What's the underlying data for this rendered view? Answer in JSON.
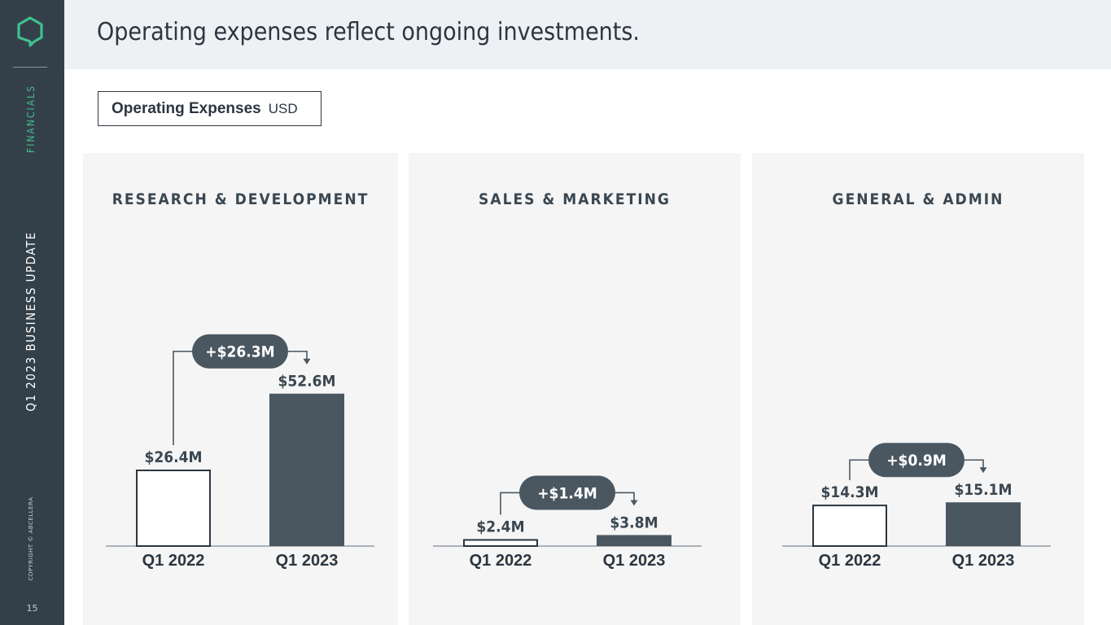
{
  "sidebar": {
    "section": "FINANCIALS",
    "deck": "Q1 2023 BUSINESS UPDATE",
    "copyright": "COPYRIGHT © ABCELLERA",
    "page_number": "15"
  },
  "header": {
    "title": "Operating expenses reflect ongoing investments."
  },
  "tag": {
    "label": "Operating Expenses",
    "unit": "USD"
  },
  "colors": {
    "sidebar": "#344049",
    "accent": "#3fbf90",
    "bar_dark": "#4a5761",
    "bar_outline": "#2b3640",
    "pill": "#4a5761",
    "panel": "#f5f5f5"
  },
  "chart_data": [
    {
      "type": "bar",
      "title": "RESEARCH & DEVELOPMENT",
      "categories": [
        "Q1 2022",
        "Q1 2023"
      ],
      "values": [
        26.4,
        52.6
      ],
      "value_labels": [
        "$26.4M",
        "$52.6M"
      ],
      "change_label": "+$26.3M",
      "ylim": [
        0,
        60
      ]
    },
    {
      "type": "bar",
      "title": "SALES & MARKETING",
      "categories": [
        "Q1 2022",
        "Q1 2023"
      ],
      "values": [
        2.4,
        3.8
      ],
      "value_labels": [
        "$2.4M",
        "$3.8M"
      ],
      "change_label": "+$1.4M",
      "ylim": [
        0,
        60
      ]
    },
    {
      "type": "bar",
      "title": "GENERAL & ADMIN",
      "categories": [
        "Q1 2022",
        "Q1 2023"
      ],
      "values": [
        14.3,
        15.1
      ],
      "value_labels": [
        "$14.3M",
        "$15.1M"
      ],
      "change_label": "+$0.9M",
      "ylim": [
        0,
        60
      ]
    }
  ]
}
